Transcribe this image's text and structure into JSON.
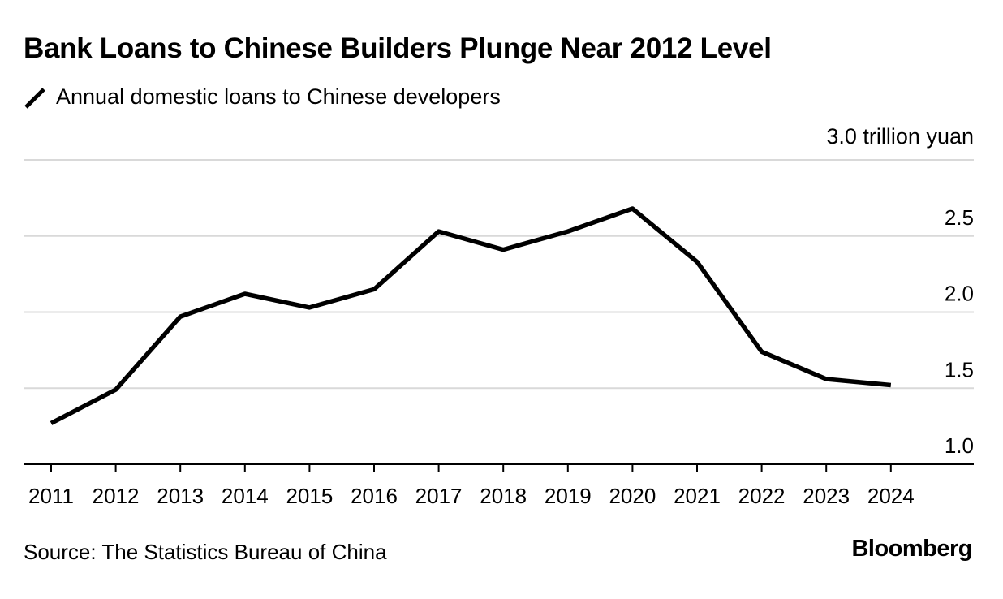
{
  "chart_data": {
    "type": "line",
    "title": "Bank Loans to Chinese Builders Plunge Near 2012 Level",
    "legend": "Annual domestic loans to Chinese developers",
    "ylabel_unit": "trillion yuan",
    "x": [
      "2011",
      "2012",
      "2013",
      "2014",
      "2015",
      "2016",
      "2017",
      "2018",
      "2019",
      "2020",
      "2021",
      "2022",
      "2023",
      "2024"
    ],
    "series": [
      {
        "name": "Annual domestic loans to Chinese developers",
        "color": "#000000",
        "values": [
          1.27,
          1.49,
          1.97,
          2.12,
          2.03,
          2.15,
          2.53,
          2.41,
          2.53,
          2.68,
          2.33,
          1.74,
          1.56,
          1.52
        ]
      }
    ],
    "ylim": [
      1.0,
      3.0
    ],
    "yticks": [
      1.0,
      1.5,
      2.0,
      2.5,
      3.0
    ],
    "ytick_labels": [
      "1.0",
      "1.5",
      "2.0",
      "2.5",
      "3.0 trillion yuan"
    ],
    "legend_position": "top-left",
    "grid": true
  },
  "source": "Source: The Statistics Bureau of China",
  "brand": "Bloomberg"
}
